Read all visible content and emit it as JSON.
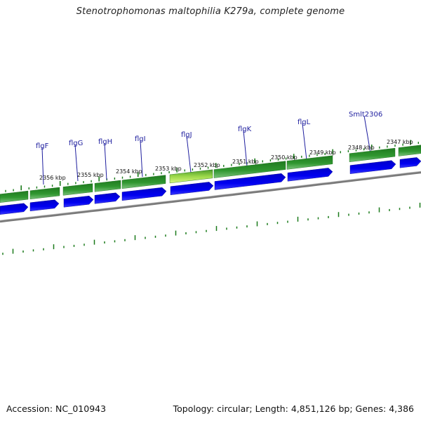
{
  "header": {
    "title": "Stenotrophomonas maltophilia K279a, complete genome"
  },
  "footer": {
    "accession": "Accession: NC_010943",
    "summary": "Topology: circular; Length: 4,851,126 bp; Genes: 4,386"
  },
  "genes": [
    {
      "name": "flgF"
    },
    {
      "name": "flgG"
    },
    {
      "name": "flgH"
    },
    {
      "name": "flgI"
    },
    {
      "name": "flgJ"
    },
    {
      "name": "flgK"
    },
    {
      "name": "flgL"
    },
    {
      "name": "Smlt2306"
    }
  ],
  "ruler_labels": [
    "2356 kbp",
    "2355 kbp",
    "2354 kbp",
    "2353 kbp",
    "2352 kbp",
    "2351 kbp",
    "2350 kbp",
    "2349 kbp",
    "2348 kbp",
    "2347 kbp"
  ],
  "colors": {
    "gene_green": "#2a8a2a",
    "gene_highlight": "#c8f060",
    "cds_blue": "#0000e0",
    "backbone_gray": "#808080",
    "tick_green": "#1a7a1a",
    "label_blue": "#1d1d9e"
  }
}
